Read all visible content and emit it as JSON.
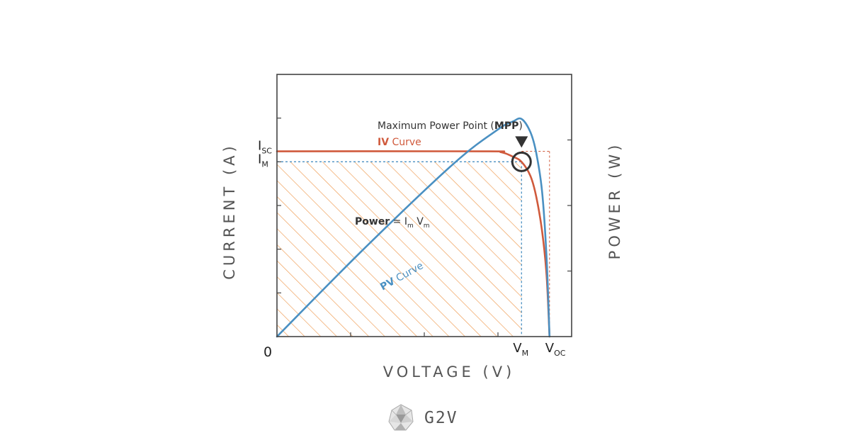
{
  "chart_data": {
    "type": "line",
    "xlabel": "VOLTAGE (V)",
    "ylabel": "CURRENT (A)",
    "ylabel_right": "POWER (W)",
    "xlim": [
      0,
      1
    ],
    "ylim": [
      0,
      1.5
    ],
    "ylim_right": [
      0,
      1
    ],
    "grid": false,
    "origin_label": "0",
    "x_ticks": [
      {
        "main": "V",
        "sub": "M",
        "value": 0.83
      },
      {
        "main": "V",
        "sub": "OC",
        "value": 0.925
      }
    ],
    "y_ticks": [
      {
        "main": "I",
        "sub": "SC",
        "value": 1.06
      },
      {
        "main": "I",
        "sub": "M",
        "value": 1.0
      }
    ],
    "series": [
      {
        "name_bold": "IV",
        "name": "Curve",
        "color": "#d05a3c",
        "axis": "left",
        "points": [
          [
            0,
            1.06
          ],
          [
            0.7,
            1.06
          ],
          [
            0.76,
            1.055
          ],
          [
            0.8,
            1.03
          ],
          [
            0.83,
            1.0
          ],
          [
            0.86,
            0.92
          ],
          [
            0.88,
            0.8
          ],
          [
            0.9,
            0.6
          ],
          [
            0.915,
            0.35
          ],
          [
            0.925,
            0
          ]
        ]
      },
      {
        "name_bold": "PV",
        "name": "Curve",
        "color": "#4a90c2",
        "axis": "right",
        "points": [
          [
            0,
            0
          ],
          [
            0.3,
            0.34
          ],
          [
            0.6,
            0.66
          ],
          [
            0.75,
            0.79
          ],
          [
            0.8,
            0.82
          ],
          [
            0.83,
            0.83
          ],
          [
            0.86,
            0.78
          ],
          [
            0.88,
            0.7
          ],
          [
            0.9,
            0.55
          ],
          [
            0.915,
            0.3
          ],
          [
            0.925,
            0
          ]
        ]
      }
    ],
    "annotations": {
      "mpp_text": "Maximum Power Point (",
      "mpp_bold": "MPP",
      "mpp_close": ")",
      "power_bold": "Power",
      "power_eq": " = I",
      "power_sub1": "m",
      "power_mid": " V",
      "power_sub2": "m"
    },
    "colors": {
      "hatch": "#f0a05a",
      "axis": "#444444",
      "dashed_iv": "#d05a3c",
      "dashed_pv": "#4a90c2"
    }
  },
  "brand": {
    "name": "G2V",
    "logo": "g2v-logo-icon"
  }
}
